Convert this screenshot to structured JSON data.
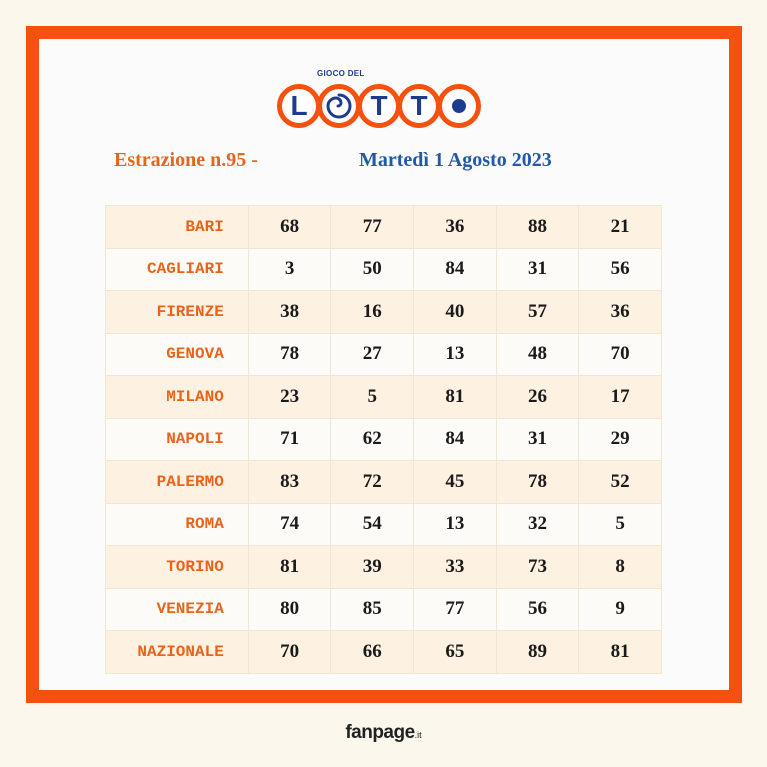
{
  "logo": {
    "top_text": "GIOCO DEL",
    "letters": [
      "L",
      "O",
      "T",
      "T",
      "O"
    ]
  },
  "header": {
    "draw": "Estrazione n.95 -",
    "date": "Martedì 1 Agosto 2023"
  },
  "results": [
    {
      "city": "BARI",
      "numbers": [
        "68",
        "77",
        "36",
        "88",
        "21"
      ]
    },
    {
      "city": "CAGLIARI",
      "numbers": [
        "3",
        "50",
        "84",
        "31",
        "56"
      ]
    },
    {
      "city": "FIRENZE",
      "numbers": [
        "38",
        "16",
        "40",
        "57",
        "36"
      ]
    },
    {
      "city": "GENOVA",
      "numbers": [
        "78",
        "27",
        "13",
        "48",
        "70"
      ]
    },
    {
      "city": "MILANO",
      "numbers": [
        "23",
        "5",
        "81",
        "26",
        "17"
      ]
    },
    {
      "city": "NAPOLI",
      "numbers": [
        "71",
        "62",
        "84",
        "31",
        "29"
      ]
    },
    {
      "city": "PALERMO",
      "numbers": [
        "83",
        "72",
        "45",
        "78",
        "52"
      ]
    },
    {
      "city": "ROMA",
      "numbers": [
        "74",
        "54",
        "13",
        "32",
        "5"
      ]
    },
    {
      "city": "TORINO",
      "numbers": [
        "81",
        "39",
        "33",
        "73",
        "8"
      ]
    },
    {
      "city": "VENEZIA",
      "numbers": [
        "80",
        "85",
        "77",
        "56",
        "9"
      ]
    },
    {
      "city": "NAZIONALE",
      "numbers": [
        "70",
        "66",
        "65",
        "89",
        "81"
      ]
    }
  ],
  "footer": {
    "brand": "fanpage",
    "suffix": ".it"
  },
  "colors": {
    "frame": "#f4500f",
    "city_text": "#e8641a",
    "date_text": "#2158a8",
    "logo_blue": "#1d3c8f"
  }
}
